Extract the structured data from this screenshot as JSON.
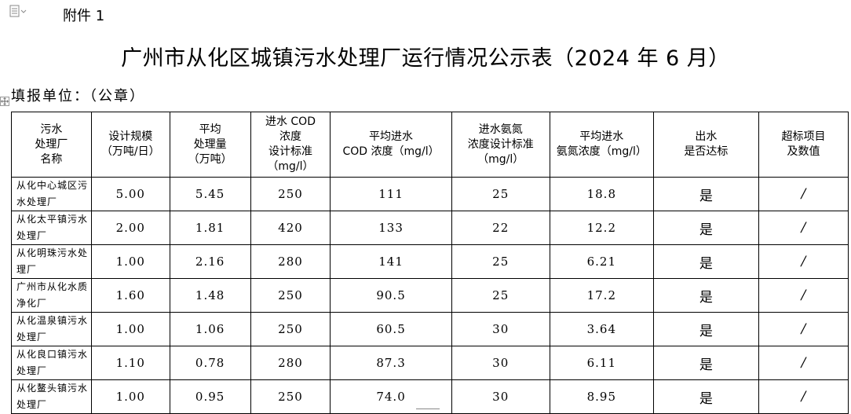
{
  "attachment_label": "附件 1",
  "title": "广州市从化区城镇污水处理厂运行情况公示表（2024 年 6 月）",
  "fill_unit": "填报单位：（公章）",
  "columns": [
    "污水\n处理厂\n名称",
    "设计规模\n（万吨/日）",
    "平均\n处理量\n（万吨）",
    "进水 COD\n浓度\n设计标准\n（mg/l）",
    "平均进水\nCOD 浓度（mg/l）",
    "进水氨氮\n浓度设计标准\n（mg/l）",
    "平均进水\n氨氮浓度（mg/l）",
    "出水\n是否达标",
    "超标项目\n及数值"
  ],
  "rows": [
    [
      "从化中心城区污水处理厂",
      "5.00",
      "5.45",
      "250",
      "111",
      "25",
      "18.8",
      "是",
      "/"
    ],
    [
      "从化太平镇污水处理厂",
      "2.00",
      "1.81",
      "420",
      "133",
      "22",
      "12.2",
      "是",
      "/"
    ],
    [
      "从化明珠污水处理厂",
      "1.00",
      "2.16",
      "280",
      "141",
      "25",
      "6.21",
      "是",
      "/"
    ],
    [
      "广州市从化水质净化厂",
      "1.60",
      "1.48",
      "250",
      "90.5",
      "25",
      "17.2",
      "是",
      "/"
    ],
    [
      "从化温泉镇污水处理厂",
      "1.00",
      "1.06",
      "250",
      "60.5",
      "30",
      "3.64",
      "是",
      "/"
    ],
    [
      "从化良口镇污水处理厂",
      "1.10",
      "0.78",
      "280",
      "87.3",
      "30",
      "6.11",
      "是",
      "/"
    ],
    [
      "从化鳌头镇污水处理厂",
      "1.00",
      "0.95",
      "250",
      "74.0",
      "30",
      "8.95",
      "是",
      "/"
    ]
  ],
  "icons": {
    "doc": "document-icon",
    "move": "table-move-handle-icon"
  }
}
